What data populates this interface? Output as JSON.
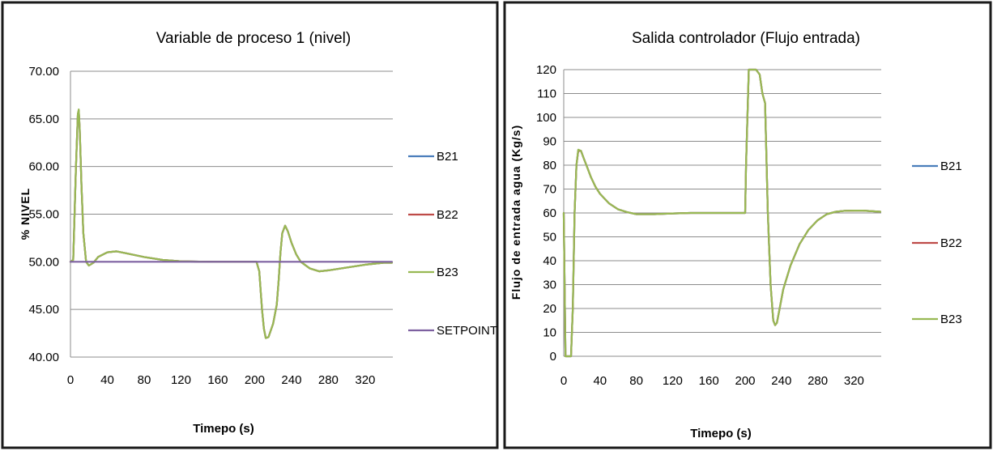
{
  "chart_data": [
    {
      "type": "line",
      "title": "Variable de proceso  1 (nivel)",
      "xlabel": "Timepo (s)",
      "ylabel": "% NIVEL",
      "xlim": [
        0,
        350
      ],
      "ylim": [
        40,
        70
      ],
      "x_ticks": [
        0,
        40,
        80,
        120,
        160,
        200,
        240,
        280,
        320
      ],
      "y_ticks": [
        40,
        45,
        50,
        55,
        60,
        65,
        70
      ],
      "y_tick_labels": [
        "40.00",
        "45.00",
        "50.00",
        "55.00",
        "60.00",
        "65.00",
        "70.00"
      ],
      "grid": "horizontal",
      "legend_position": "right",
      "series": [
        {
          "name": "B21",
          "color": "#4a7ebb",
          "x": [
            0,
            3,
            6,
            8,
            9,
            10,
            12,
            14,
            17,
            20,
            25,
            30,
            40,
            50,
            60,
            80,
            100,
            120,
            140,
            160,
            180,
            200,
            202,
            205,
            208,
            210,
            212,
            215,
            220,
            224,
            226,
            228,
            230,
            233,
            236,
            240,
            245,
            250,
            260,
            270,
            280,
            300,
            320,
            340,
            349
          ],
          "y": [
            50,
            50.2,
            60,
            65.5,
            65.9,
            64,
            58,
            53,
            50,
            49.6,
            49.9,
            50.5,
            51,
            51.1,
            50.9,
            50.5,
            50.2,
            50.05,
            50.02,
            50,
            50,
            50,
            50,
            49,
            45,
            43,
            42,
            42.1,
            43.5,
            45.5,
            48,
            51,
            53,
            53.8,
            53.2,
            52,
            50.8,
            50,
            49.3,
            49,
            49.1,
            49.4,
            49.7,
            49.9,
            49.9
          ]
        },
        {
          "name": "B22",
          "color": "#be4b48",
          "x": [
            0,
            3,
            6,
            8,
            9,
            10,
            12,
            14,
            17,
            20,
            25,
            30,
            40,
            50,
            60,
            80,
            100,
            120,
            140,
            160,
            180,
            200,
            202,
            205,
            208,
            210,
            212,
            215,
            220,
            224,
            226,
            228,
            230,
            233,
            236,
            240,
            245,
            250,
            260,
            270,
            280,
            300,
            320,
            340,
            349
          ],
          "y": [
            50,
            50.2,
            60,
            65.5,
            65.9,
            64,
            58,
            53,
            50,
            49.6,
            49.9,
            50.5,
            51,
            51.1,
            50.9,
            50.5,
            50.2,
            50.05,
            50.02,
            50,
            50,
            50,
            50,
            49,
            45,
            43,
            42,
            42.1,
            43.5,
            45.5,
            48,
            51,
            53,
            53.8,
            53.2,
            52,
            50.8,
            50,
            49.3,
            49,
            49.1,
            49.4,
            49.7,
            49.9,
            49.9
          ]
        },
        {
          "name": "B23",
          "color": "#98b954",
          "x": [
            0,
            3,
            6,
            8,
            9,
            10,
            12,
            14,
            17,
            20,
            25,
            30,
            40,
            50,
            60,
            80,
            100,
            120,
            140,
            160,
            180,
            200,
            202,
            205,
            208,
            210,
            212,
            215,
            220,
            224,
            226,
            228,
            230,
            233,
            236,
            240,
            245,
            250,
            260,
            270,
            280,
            300,
            320,
            340,
            349
          ],
          "y": [
            50,
            50.2,
            60,
            65.5,
            66,
            64,
            58,
            53,
            50,
            49.6,
            49.9,
            50.5,
            51,
            51.1,
            50.9,
            50.5,
            50.2,
            50.05,
            50.02,
            50,
            50,
            50,
            50,
            49,
            45,
            43,
            42,
            42.1,
            43.5,
            45.5,
            48,
            51,
            53,
            53.8,
            53.2,
            52,
            50.8,
            50,
            49.3,
            49,
            49.1,
            49.4,
            49.7,
            49.9,
            49.9
          ]
        },
        {
          "name": "SETPOINT",
          "color": "#7d60a0",
          "x": [
            0,
            349
          ],
          "y": [
            50,
            50
          ]
        }
      ]
    },
    {
      "type": "line",
      "title": "Salida controlador (Flujo entrada)",
      "xlabel": "Timepo (s)",
      "ylabel": "Flujo de entrada agua  (Kg/s)",
      "xlim": [
        0,
        350
      ],
      "ylim": [
        0,
        120
      ],
      "x_ticks": [
        0,
        40,
        80,
        120,
        160,
        200,
        240,
        280,
        320
      ],
      "y_ticks": [
        0,
        10,
        20,
        30,
        40,
        50,
        60,
        70,
        80,
        90,
        100,
        110,
        120
      ],
      "y_tick_labels": [
        "0",
        "10",
        "20",
        "30",
        "40",
        "50",
        "60",
        "70",
        "80",
        "90",
        "100",
        "110",
        "120"
      ],
      "grid": "horizontal",
      "legend_position": "right",
      "series": [
        {
          "name": "B21",
          "color": "#4a7ebb",
          "x": [
            0,
            2,
            4,
            6,
            8,
            10,
            12,
            14,
            16,
            19,
            22,
            26,
            30,
            35,
            40,
            50,
            60,
            70,
            80,
            100,
            120,
            140,
            160,
            180,
            200,
            201,
            204,
            206,
            208,
            212,
            216,
            219,
            222,
            225,
            228,
            231,
            233,
            235,
            238,
            242,
            250,
            260,
            270,
            280,
            290,
            300,
            310,
            320,
            330,
            349
          ],
          "y": [
            60,
            0,
            0,
            0,
            0,
            20,
            60,
            80,
            86,
            86,
            83,
            79,
            75,
            71,
            68,
            64,
            61.5,
            60.3,
            59.5,
            59.5,
            59.8,
            60,
            60,
            60,
            60,
            80,
            120,
            120,
            120,
            120,
            118,
            110,
            106,
            60,
            30,
            15,
            13,
            14,
            20,
            28,
            38,
            47,
            53,
            57,
            59.5,
            60.5,
            60.9,
            61,
            61,
            60.5
          ]
        },
        {
          "name": "B22",
          "color": "#be4b48",
          "x": [
            0,
            2,
            4,
            6,
            8,
            10,
            12,
            14,
            16,
            19,
            22,
            26,
            30,
            35,
            40,
            50,
            60,
            70,
            80,
            100,
            120,
            140,
            160,
            180,
            200,
            201,
            204,
            206,
            208,
            212,
            216,
            219,
            222,
            225,
            228,
            231,
            233,
            235,
            238,
            242,
            250,
            260,
            270,
            280,
            290,
            300,
            310,
            320,
            330,
            349
          ],
          "y": [
            60,
            0,
            0,
            0,
            0,
            20,
            60,
            80,
            86,
            86,
            83,
            79,
            75,
            71,
            68,
            64,
            61.5,
            60.3,
            59.5,
            59.5,
            59.8,
            60,
            60,
            60,
            60,
            80,
            120,
            120,
            120,
            120,
            118,
            110,
            106,
            60,
            30,
            15,
            13,
            14,
            20,
            28,
            38,
            47,
            53,
            57,
            59.5,
            60.5,
            60.9,
            61,
            61,
            60.5
          ]
        },
        {
          "name": "B23",
          "color": "#98b954",
          "x": [
            0,
            2,
            4,
            6,
            8,
            10,
            12,
            14,
            16,
            19,
            22,
            26,
            30,
            35,
            40,
            50,
            60,
            70,
            80,
            100,
            120,
            140,
            160,
            180,
            200,
            201,
            204,
            206,
            208,
            212,
            216,
            219,
            222,
            225,
            228,
            231,
            233,
            235,
            238,
            242,
            250,
            260,
            270,
            280,
            290,
            300,
            310,
            320,
            330,
            349
          ],
          "y": [
            60,
            0,
            0,
            0,
            0,
            20,
            60,
            80,
            86.5,
            86,
            83,
            79,
            75,
            71,
            68,
            64,
            61.5,
            60.3,
            59.5,
            59.5,
            59.8,
            60,
            60,
            60,
            60,
            80,
            120,
            120,
            120,
            120,
            118,
            110,
            106,
            60,
            30,
            15,
            13,
            14,
            20,
            28,
            38,
            47,
            53,
            57,
            59.5,
            60.5,
            60.9,
            61,
            61,
            60.5
          ]
        }
      ]
    }
  ]
}
